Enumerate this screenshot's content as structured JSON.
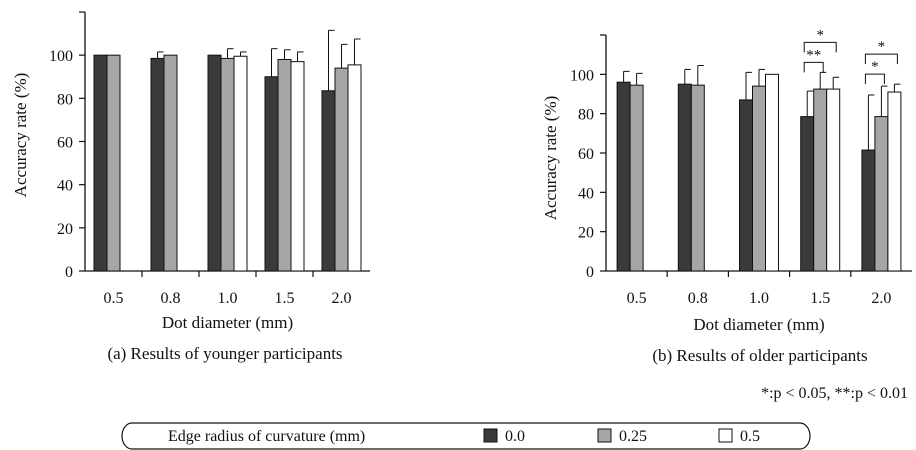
{
  "colors": {
    "dark": "#3a3a3a",
    "gray": "#a6a6a6",
    "white": "#ffffff",
    "axis": "#111111"
  },
  "chart_data": [
    {
      "type": "bar",
      "title": "(a) Results of younger participants",
      "xlabel": "Dot diameter (mm)",
      "ylabel": "Accuracy rate (%)",
      "ylim": [
        0,
        120
      ],
      "yticks": [
        0,
        20,
        40,
        60,
        80,
        100
      ],
      "categories": [
        "0.5",
        "0.8",
        "1.0",
        "1.5",
        "2.0"
      ],
      "series": [
        {
          "name": "0.0",
          "values": [
            100,
            98.5,
            100,
            90,
            83.5
          ],
          "errors": [
            0,
            3,
            0,
            13,
            28
          ]
        },
        {
          "name": "0.25",
          "values": [
            100,
            100,
            98.5,
            98,
            94
          ],
          "errors": [
            0,
            0,
            4.5,
            4.5,
            11
          ]
        },
        {
          "name": "0.5",
          "values": [
            null,
            null,
            99.5,
            97,
            95.5
          ],
          "errors": [
            0,
            0,
            2,
            4.5,
            12
          ]
        }
      ],
      "significance": []
    },
    {
      "type": "bar",
      "title": "(b) Results of older participants",
      "xlabel": "Dot diameter (mm)",
      "ylabel": "Accuracy rate (%)",
      "ylim": [
        0,
        120
      ],
      "yticks": [
        0,
        20,
        40,
        60,
        80,
        100
      ],
      "categories": [
        "0.5",
        "0.8",
        "1.0",
        "1.5",
        "2.0"
      ],
      "series": [
        {
          "name": "0.0",
          "values": [
            96,
            95,
            87,
            78.5,
            61.5
          ],
          "errors": [
            5.5,
            7.5,
            14,
            13,
            28
          ]
        },
        {
          "name": "0.25",
          "values": [
            94.5,
            94.5,
            94,
            92.5,
            78.5
          ],
          "errors": [
            6,
            10,
            8.5,
            8.5,
            15.5
          ]
        },
        {
          "name": "0.5",
          "values": [
            null,
            null,
            100,
            92.5,
            91
          ],
          "errors": [
            0,
            0,
            0,
            6,
            4
          ]
        }
      ],
      "significance": [
        {
          "category": "1.5",
          "from_series": 0,
          "to_series": 1,
          "label": "**"
        },
        {
          "category": "1.5",
          "from_series": 0,
          "to_series": 2,
          "label": "*"
        },
        {
          "category": "2.0",
          "from_series": 0,
          "to_series": 1,
          "label": "*"
        },
        {
          "category": "2.0",
          "from_series": 0,
          "to_series": 2,
          "label": "*"
        }
      ]
    }
  ],
  "significance_note": "*:p < 0.05,  **:p < 0.01",
  "legend": {
    "title": "Edge radius of curvature (mm)",
    "items": [
      {
        "label": "0.0",
        "color": "#3a3a3a"
      },
      {
        "label": "0.25",
        "color": "#a6a6a6"
      },
      {
        "label": "0.5",
        "color": "#ffffff"
      }
    ]
  }
}
